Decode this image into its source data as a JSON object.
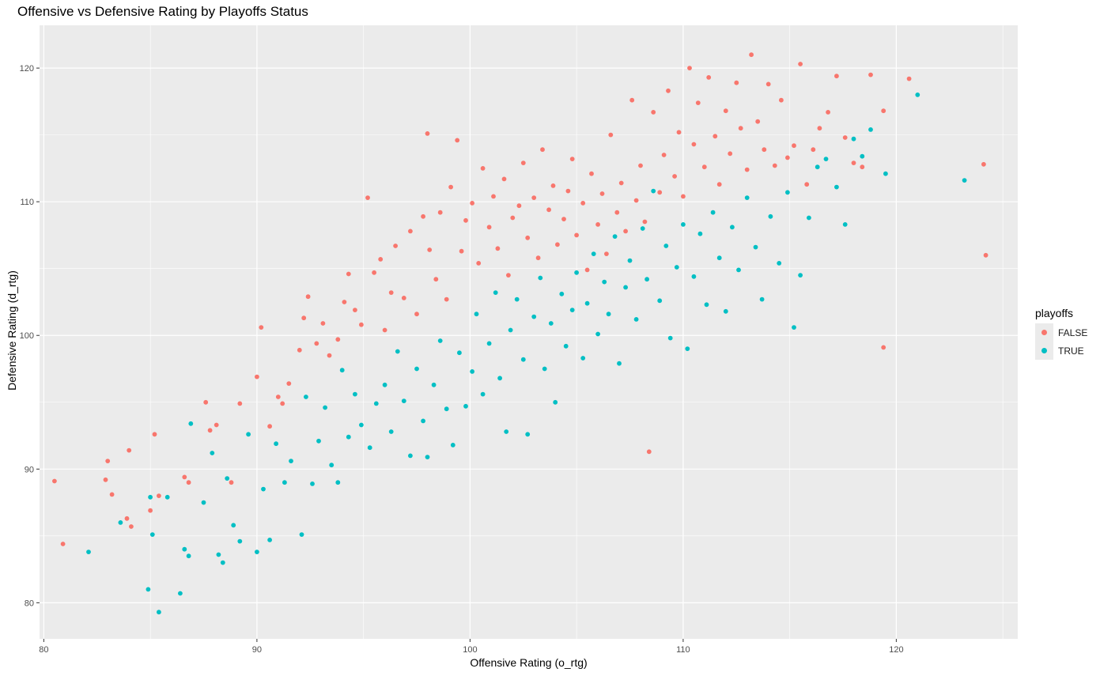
{
  "chart_data": {
    "type": "scatter",
    "title": "Offensive vs Defensive Rating by Playoffs Status",
    "xlabel": "Offensive Rating (o_rtg)",
    "ylabel": "Defensive Rating (d_rtg)",
    "xlim": [
      79.8,
      125.7
    ],
    "ylim": [
      77.3,
      123.2
    ],
    "x_ticks": [
      80,
      90,
      100,
      110,
      120
    ],
    "y_ticks": [
      80,
      90,
      100,
      110,
      120
    ],
    "grid": true,
    "legend": {
      "title": "playoffs",
      "position": "right"
    },
    "series": [
      {
        "name": "FALSE",
        "color": "#F8766D",
        "points": [
          [
            80.5,
            89.1
          ],
          [
            80.9,
            84.4
          ],
          [
            82.9,
            89.2
          ],
          [
            83.0,
            90.6
          ],
          [
            83.2,
            88.1
          ],
          [
            83.9,
            86.3
          ],
          [
            84.0,
            91.4
          ],
          [
            84.1,
            85.7
          ],
          [
            85.0,
            86.9
          ],
          [
            85.2,
            92.6
          ],
          [
            85.4,
            88.0
          ],
          [
            86.6,
            89.4
          ],
          [
            86.8,
            89.0
          ],
          [
            87.6,
            95.0
          ],
          [
            87.8,
            92.9
          ],
          [
            88.1,
            93.3
          ],
          [
            88.8,
            89.0
          ],
          [
            89.2,
            94.9
          ],
          [
            90.0,
            96.9
          ],
          [
            90.2,
            100.6
          ],
          [
            90.6,
            93.2
          ],
          [
            91.0,
            95.4
          ],
          [
            91.2,
            94.9
          ],
          [
            91.5,
            96.4
          ],
          [
            92.0,
            98.9
          ],
          [
            92.2,
            101.3
          ],
          [
            92.4,
            102.9
          ],
          [
            92.8,
            99.4
          ],
          [
            93.1,
            100.9
          ],
          [
            93.4,
            98.5
          ],
          [
            93.8,
            99.7
          ],
          [
            94.1,
            102.5
          ],
          [
            94.3,
            104.6
          ],
          [
            94.6,
            101.9
          ],
          [
            94.9,
            100.8
          ],
          [
            95.2,
            110.3
          ],
          [
            95.5,
            104.7
          ],
          [
            95.8,
            105.7
          ],
          [
            96.0,
            100.4
          ],
          [
            96.3,
            103.2
          ],
          [
            96.5,
            106.7
          ],
          [
            96.9,
            102.8
          ],
          [
            97.2,
            107.8
          ],
          [
            97.5,
            101.6
          ],
          [
            97.8,
            108.9
          ],
          [
            98.0,
            115.1
          ],
          [
            98.1,
            106.4
          ],
          [
            98.4,
            104.2
          ],
          [
            98.6,
            109.2
          ],
          [
            98.9,
            102.7
          ],
          [
            99.1,
            111.1
          ],
          [
            99.4,
            114.6
          ],
          [
            99.6,
            106.3
          ],
          [
            99.8,
            108.6
          ],
          [
            100.1,
            109.9
          ],
          [
            100.4,
            105.4
          ],
          [
            100.6,
            112.5
          ],
          [
            100.9,
            108.1
          ],
          [
            101.1,
            110.4
          ],
          [
            101.3,
            106.5
          ],
          [
            101.6,
            111.7
          ],
          [
            101.8,
            104.5
          ],
          [
            102.0,
            108.8
          ],
          [
            102.3,
            109.7
          ],
          [
            102.5,
            112.9
          ],
          [
            102.7,
            107.3
          ],
          [
            103.0,
            110.3
          ],
          [
            103.2,
            105.8
          ],
          [
            103.4,
            113.9
          ],
          [
            103.7,
            109.4
          ],
          [
            103.9,
            111.2
          ],
          [
            104.1,
            106.8
          ],
          [
            104.4,
            108.7
          ],
          [
            104.6,
            110.8
          ],
          [
            104.8,
            113.2
          ],
          [
            105.0,
            107.5
          ],
          [
            105.3,
            109.9
          ],
          [
            105.5,
            104.9
          ],
          [
            105.7,
            112.1
          ],
          [
            106.0,
            108.3
          ],
          [
            106.2,
            110.6
          ],
          [
            106.4,
            106.1
          ],
          [
            106.6,
            115.0
          ],
          [
            106.9,
            109.2
          ],
          [
            107.1,
            111.4
          ],
          [
            107.3,
            107.8
          ],
          [
            107.6,
            117.6
          ],
          [
            107.8,
            110.1
          ],
          [
            108.0,
            112.7
          ],
          [
            108.2,
            108.5
          ],
          [
            108.4,
            91.3
          ],
          [
            108.6,
            116.7
          ],
          [
            108.9,
            110.7
          ],
          [
            109.1,
            113.5
          ],
          [
            109.3,
            118.3
          ],
          [
            109.6,
            111.9
          ],
          [
            109.8,
            115.2
          ],
          [
            110.0,
            110.4
          ],
          [
            110.3,
            120.0
          ],
          [
            110.5,
            114.3
          ],
          [
            110.7,
            117.4
          ],
          [
            111.0,
            112.6
          ],
          [
            111.2,
            119.3
          ],
          [
            111.5,
            114.9
          ],
          [
            111.7,
            111.3
          ],
          [
            112.0,
            116.8
          ],
          [
            112.2,
            113.6
          ],
          [
            112.5,
            118.9
          ],
          [
            112.7,
            115.5
          ],
          [
            113.0,
            112.4
          ],
          [
            113.2,
            121.0
          ],
          [
            113.5,
            116.0
          ],
          [
            113.8,
            113.9
          ],
          [
            114.0,
            118.8
          ],
          [
            114.3,
            112.7
          ],
          [
            114.6,
            117.6
          ],
          [
            114.9,
            113.3
          ],
          [
            115.2,
            114.2
          ],
          [
            115.5,
            120.3
          ],
          [
            115.8,
            111.3
          ],
          [
            116.1,
            113.9
          ],
          [
            116.4,
            115.5
          ],
          [
            116.8,
            116.7
          ],
          [
            117.2,
            119.4
          ],
          [
            117.6,
            114.8
          ],
          [
            118.0,
            112.9
          ],
          [
            118.4,
            112.6
          ],
          [
            118.8,
            119.5
          ],
          [
            119.4,
            99.1
          ],
          [
            119.4,
            116.8
          ],
          [
            120.6,
            119.2
          ],
          [
            124.1,
            112.8
          ],
          [
            124.2,
            106.0
          ]
        ]
      },
      {
        "name": "TRUE",
        "color": "#00BFC4",
        "points": [
          [
            82.1,
            83.8
          ],
          [
            83.6,
            86.0
          ],
          [
            84.9,
            81.0
          ],
          [
            85.0,
            87.9
          ],
          [
            85.1,
            85.1
          ],
          [
            85.4,
            79.3
          ],
          [
            85.8,
            87.9
          ],
          [
            86.4,
            80.7
          ],
          [
            86.6,
            84.0
          ],
          [
            86.8,
            83.5
          ],
          [
            86.9,
            93.4
          ],
          [
            87.5,
            87.5
          ],
          [
            87.9,
            91.2
          ],
          [
            88.2,
            83.6
          ],
          [
            88.4,
            83.0
          ],
          [
            88.6,
            89.3
          ],
          [
            88.9,
            85.8
          ],
          [
            89.2,
            84.6
          ],
          [
            89.6,
            92.6
          ],
          [
            90.0,
            83.8
          ],
          [
            90.3,
            88.5
          ],
          [
            90.6,
            84.7
          ],
          [
            90.9,
            91.9
          ],
          [
            91.3,
            89.0
          ],
          [
            91.6,
            90.6
          ],
          [
            92.1,
            85.1
          ],
          [
            92.3,
            95.4
          ],
          [
            92.6,
            88.9
          ],
          [
            92.9,
            92.1
          ],
          [
            93.2,
            94.6
          ],
          [
            93.5,
            90.3
          ],
          [
            93.8,
            89.0
          ],
          [
            94.0,
            97.4
          ],
          [
            94.3,
            92.4
          ],
          [
            94.6,
            95.6
          ],
          [
            94.9,
            93.3
          ],
          [
            95.3,
            91.6
          ],
          [
            95.6,
            94.9
          ],
          [
            96.0,
            96.3
          ],
          [
            96.3,
            92.8
          ],
          [
            96.6,
            98.8
          ],
          [
            96.9,
            95.1
          ],
          [
            97.2,
            91.0
          ],
          [
            97.5,
            97.5
          ],
          [
            97.8,
            93.6
          ],
          [
            98.0,
            90.9
          ],
          [
            98.3,
            96.3
          ],
          [
            98.6,
            99.6
          ],
          [
            98.9,
            94.5
          ],
          [
            99.2,
            91.8
          ],
          [
            99.5,
            98.7
          ],
          [
            99.8,
            94.7
          ],
          [
            100.1,
            97.3
          ],
          [
            100.3,
            101.6
          ],
          [
            100.6,
            95.6
          ],
          [
            100.9,
            99.4
          ],
          [
            101.2,
            103.2
          ],
          [
            101.4,
            96.8
          ],
          [
            101.7,
            92.8
          ],
          [
            101.9,
            100.4
          ],
          [
            102.2,
            102.7
          ],
          [
            102.5,
            98.2
          ],
          [
            102.7,
            92.6
          ],
          [
            103.0,
            101.4
          ],
          [
            103.3,
            104.3
          ],
          [
            103.5,
            97.5
          ],
          [
            103.8,
            100.9
          ],
          [
            104.0,
            95.0
          ],
          [
            104.3,
            103.1
          ],
          [
            104.5,
            99.2
          ],
          [
            104.8,
            101.9
          ],
          [
            105.0,
            104.7
          ],
          [
            105.3,
            98.3
          ],
          [
            105.5,
            102.4
          ],
          [
            105.8,
            106.1
          ],
          [
            106.0,
            100.1
          ],
          [
            106.3,
            104.0
          ],
          [
            106.5,
            101.6
          ],
          [
            106.8,
            107.4
          ],
          [
            107.0,
            97.9
          ],
          [
            107.3,
            103.6
          ],
          [
            107.5,
            105.6
          ],
          [
            107.8,
            101.2
          ],
          [
            108.1,
            108.0
          ],
          [
            108.3,
            104.2
          ],
          [
            108.6,
            110.8
          ],
          [
            108.9,
            102.6
          ],
          [
            109.2,
            106.7
          ],
          [
            109.4,
            99.8
          ],
          [
            109.7,
            105.1
          ],
          [
            110.0,
            108.3
          ],
          [
            110.2,
            99.0
          ],
          [
            110.5,
            104.4
          ],
          [
            110.8,
            107.6
          ],
          [
            111.1,
            102.3
          ],
          [
            111.4,
            109.2
          ],
          [
            111.7,
            105.8
          ],
          [
            112.0,
            101.8
          ],
          [
            112.3,
            108.1
          ],
          [
            112.6,
            104.9
          ],
          [
            113.0,
            110.3
          ],
          [
            113.4,
            106.6
          ],
          [
            113.7,
            102.7
          ],
          [
            114.1,
            108.9
          ],
          [
            114.5,
            105.4
          ],
          [
            114.9,
            110.7
          ],
          [
            115.2,
            100.6
          ],
          [
            115.5,
            104.5
          ],
          [
            115.9,
            108.8
          ],
          [
            116.3,
            112.6
          ],
          [
            116.7,
            113.2
          ],
          [
            117.2,
            111.1
          ],
          [
            117.6,
            108.3
          ],
          [
            118.0,
            114.7
          ],
          [
            118.4,
            113.4
          ],
          [
            118.8,
            115.4
          ],
          [
            119.5,
            112.1
          ],
          [
            121.0,
            118.0
          ],
          [
            123.2,
            111.6
          ]
        ]
      }
    ]
  }
}
